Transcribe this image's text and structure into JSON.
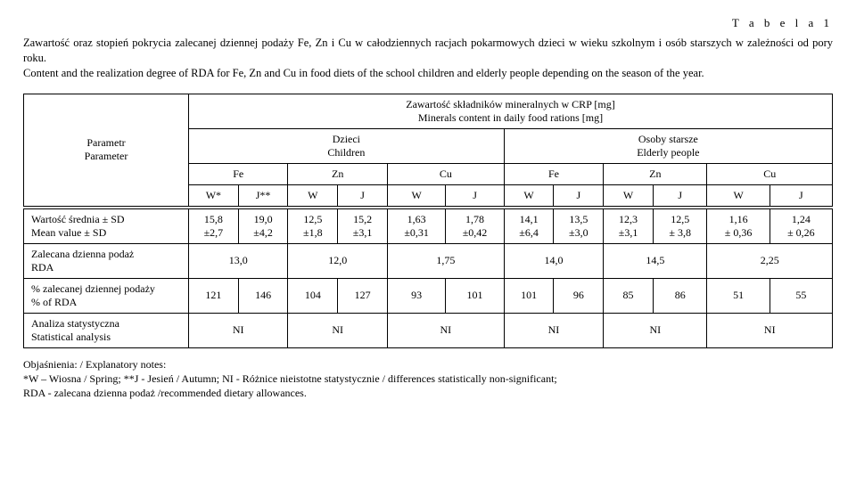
{
  "table_label": "T a b e l a  1",
  "caption_pl": "Zawartość oraz stopień pokrycia zalecanej dziennej podaży Fe, Zn i Cu w całodziennych racjach pokarmowych dzieci w wieku szkolnym i osób starszych w zależności od pory roku.",
  "caption_en": "Content and the realization degree of RDA for Fe, Zn and Cu in food diets of the school children and elderly people depending on the season of the year.",
  "header": {
    "parametr": "Parametr",
    "parameter": "Parameter",
    "top": "Zawartość składników mineralnych w CRP [mg]",
    "top2": "Minerals content in daily food rations [mg]",
    "dzieci": "Dzieci",
    "children": "Children",
    "osoby": "Osoby starsze",
    "elderly": "Elderly people",
    "fe": "Fe",
    "zn": "Zn",
    "cu": "Cu",
    "w": "W",
    "j": "J",
    "ws": "W*",
    "js": "J**"
  },
  "rows": {
    "mean1": "Wartość średnia ± SD",
    "mean2": "Mean value ± SD",
    "rda1": "Zalecana dzienna podaż",
    "rda2": "RDA",
    "pct1": "% zalecanej dziennej podaży",
    "pct2": "% of RDA",
    "stat1": "Analiza statystyczna",
    "stat2": "Statistical analysis"
  },
  "values": {
    "mean_top": [
      "15,8",
      "19,0",
      "12,5",
      "15,2",
      "1,63",
      "1,78",
      "14,1",
      "13,5",
      "12,3",
      "12,5",
      "1,16",
      "1,24"
    ],
    "mean_sd": [
      "±2,7",
      "±4,2",
      "±1,8",
      "±3,1",
      "±0,31",
      "±0,42",
      "±6,4",
      "±3,0",
      "±3,1",
      "± 3,8",
      "± 0,36",
      "± 0,26"
    ],
    "rda": [
      "13,0",
      "12,0",
      "1,75",
      "14,0",
      "14,5",
      "2,25"
    ],
    "pct": [
      "121",
      "146",
      "104",
      "127",
      "93",
      "101",
      "101",
      "96",
      "85",
      "86",
      "51",
      "55"
    ],
    "ni": "NI"
  },
  "footnotes": {
    "line1": "Objaśnienia: / Explanatory notes:",
    "line2": "*W – Wiosna / Spring;  **J - Jesień / Autumn; NI - Różnice nieistotne statystycznie / differences statistically non-significant;",
    "line3": "RDA - zalecana dzienna podaż /recommended dietary allowances."
  }
}
